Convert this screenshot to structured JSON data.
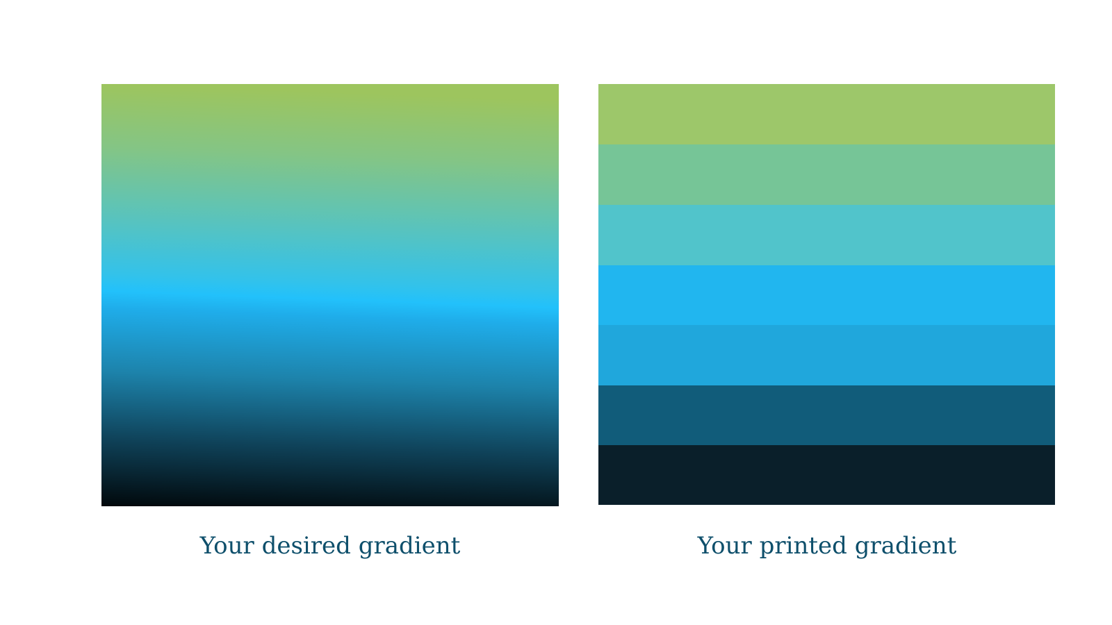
{
  "left": {
    "caption": "Your desired gradient"
  },
  "right": {
    "caption": "Your printed gradient"
  }
}
